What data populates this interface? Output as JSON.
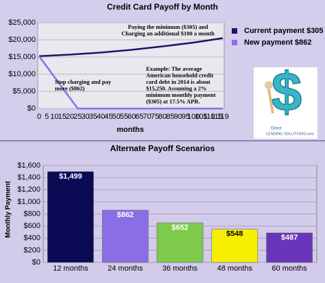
{
  "chart_data": [
    {
      "type": "line",
      "title": "Credit Card Payoff by Month",
      "x_label": "months",
      "xlim": [
        0,
        119
      ],
      "xticks": [
        0,
        5,
        10,
        15,
        20,
        25,
        30,
        35,
        40,
        45,
        50,
        55,
        60,
        65,
        70,
        75,
        80,
        85,
        90,
        95,
        100,
        105,
        110,
        115,
        119
      ],
      "ylim": [
        0,
        25000
      ],
      "yticks": [
        {
          "value": 0,
          "label": "$0"
        },
        {
          "value": 5000,
          "label": "$5,000"
        },
        {
          "value": 10000,
          "label": "$10,000"
        },
        {
          "value": 15000,
          "label": "$15,000"
        },
        {
          "value": 20000,
          "label": "$20,000"
        },
        {
          "value": 25000,
          "label": "$25,000"
        }
      ],
      "grid": true,
      "series": [
        {
          "name": "Current payment $305",
          "color": "#1c1464",
          "x": [
            0,
            20,
            40,
            60,
            80,
            100,
            119
          ],
          "values": [
            15250,
            15700,
            16300,
            17100,
            18100,
            19200,
            20500
          ]
        },
        {
          "name": "New payment $862",
          "color": "#8f6cf0",
          "x": [
            0,
            25,
            119
          ],
          "values": [
            15250,
            0,
            0
          ]
        }
      ],
      "annotations": [
        [
          "Paying the minimum ($305) and",
          "Charging an additional $100 a month"
        ],
        [
          "Stop charging and pay",
          "more ($862)"
        ],
        [
          "Example:  The average",
          "American household credit",
          "card debt in 2014 is about",
          "$15,250.  Assuming a 2%",
          "minimum monthly payment",
          "($305) at 17.5% APR."
        ]
      ]
    },
    {
      "type": "bar",
      "title": "Alternate Payoff Scenarios",
      "y_label": "Monthly Payment",
      "categories": [
        "12 months",
        "24 months",
        "36 months",
        "48 months",
        "60 months"
      ],
      "values": [
        1499,
        862,
        652,
        548,
        487
      ],
      "value_labels": [
        "$1,499",
        "$862",
        "$652",
        "$548",
        "$487"
      ],
      "colors": [
        "#0a0a55",
        "#8a6ee6",
        "#7ecb4c",
        "#f5f000",
        "#6a35b8"
      ],
      "ylim": [
        0,
        1600
      ],
      "yticks": [
        {
          "value": 0,
          "label": "$0"
        },
        {
          "value": 200,
          "label": "$200"
        },
        {
          "value": 400,
          "label": "$400"
        },
        {
          "value": 600,
          "label": "$600"
        },
        {
          "value": 800,
          "label": "$800"
        },
        {
          "value": 1000,
          "label": "$1,000"
        },
        {
          "value": 1200,
          "label": "$1,200"
        },
        {
          "value": 1400,
          "label": "$1,400"
        },
        {
          "value": 1600,
          "label": "$1,600"
        }
      ],
      "grid": true
    }
  ],
  "logo": {
    "line1": "Direct",
    "line2": "LENDING SOLUTIONS.com"
  }
}
